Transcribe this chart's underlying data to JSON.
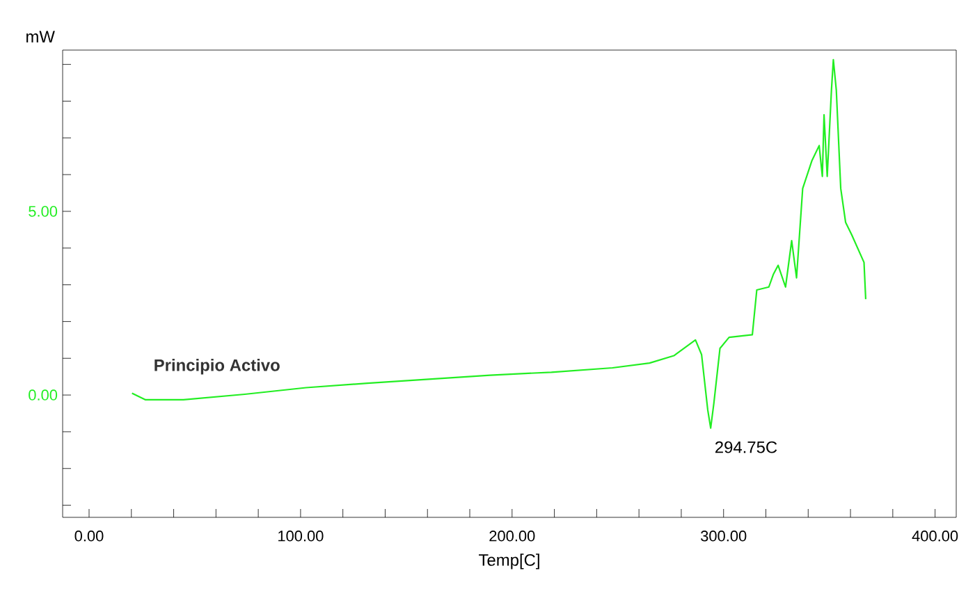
{
  "chart_data": {
    "type": "line",
    "xlabel": "Temp[C]",
    "ylabel": "mW",
    "series": [
      {
        "name": "Principio Activo",
        "color": "#22ee22",
        "x": [
          20.3,
          26.7,
          44.6,
          73.6,
          102.6,
          131.6,
          160.6,
          189.6,
          218.6,
          247.5,
          265,
          276.5,
          286.7,
          289.6,
          292.5,
          293.9,
          295.4,
          298.3,
          302.6,
          313.6,
          315.7,
          321.4,
          323.5,
          325.8,
          329.3,
          332.2,
          334.5,
          337.4,
          341.7,
          345.2,
          346.7,
          347.5,
          349,
          351,
          351.9,
          353.3,
          355.4,
          357.7,
          360.6,
          366.4,
          367.2
        ],
        "values": [
          0.05,
          -0.13,
          -0.13,
          0.02,
          0.2,
          0.32,
          0.43,
          0.54,
          0.62,
          0.74,
          0.87,
          1.07,
          1.5,
          1.1,
          -0.4,
          -0.9,
          -0.23,
          1.27,
          1.57,
          1.64,
          2.86,
          2.94,
          3.28,
          3.53,
          2.94,
          4.2,
          3.19,
          5.62,
          6.37,
          6.79,
          5.95,
          7.63,
          5.95,
          8.3,
          9.13,
          8.3,
          5.62,
          4.7,
          4.36,
          3.61,
          2.61
        ]
      }
    ],
    "xlim": [
      -12.5,
      410
    ],
    "ylim": [
      -3.33,
      9.39
    ],
    "xticks": [
      {
        "value": 0,
        "label": "0.00"
      },
      {
        "value": 20,
        "label": null
      },
      {
        "value": 40,
        "label": null
      },
      {
        "value": 60,
        "label": null
      },
      {
        "value": 80,
        "label": null
      },
      {
        "value": 100,
        "label": "100.00"
      },
      {
        "value": 120,
        "label": null
      },
      {
        "value": 140,
        "label": null
      },
      {
        "value": 160,
        "label": null
      },
      {
        "value": 180,
        "label": null
      },
      {
        "value": 200,
        "label": "200.00"
      },
      {
        "value": 220,
        "label": null
      },
      {
        "value": 240,
        "label": null
      },
      {
        "value": 260,
        "label": null
      },
      {
        "value": 280,
        "label": null
      },
      {
        "value": 300,
        "label": "300.00"
      },
      {
        "value": 320,
        "label": null
      },
      {
        "value": 340,
        "label": null
      },
      {
        "value": 360,
        "label": null
      },
      {
        "value": 380,
        "label": null
      },
      {
        "value": 400,
        "label": "400.00"
      }
    ],
    "yticks": [
      {
        "value": -3,
        "label": null
      },
      {
        "value": -2,
        "label": null
      },
      {
        "value": -1,
        "label": null
      },
      {
        "value": 0,
        "label": "0.00"
      },
      {
        "value": 1,
        "label": null
      },
      {
        "value": 2,
        "label": null
      },
      {
        "value": 3,
        "label": null
      },
      {
        "value": 4,
        "label": null
      },
      {
        "value": 5,
        "label": "5.00"
      },
      {
        "value": 6,
        "label": null
      },
      {
        "value": 7,
        "label": null
      },
      {
        "value": 8,
        "label": null
      },
      {
        "value": 9,
        "label": null
      }
    ],
    "annotations": [
      {
        "text": "294.75C",
        "x": 294.75,
        "y": -0.9
      }
    ]
  }
}
